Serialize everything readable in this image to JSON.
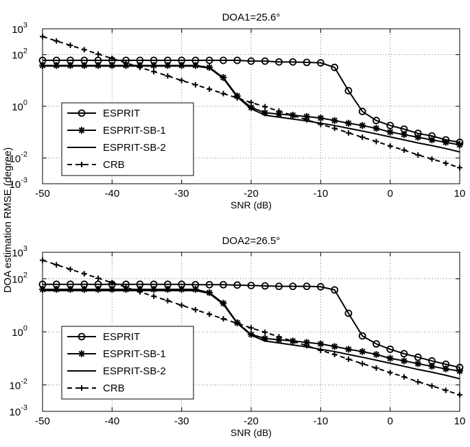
{
  "chart_data": [
    {
      "type": "line",
      "title": "DOA1=25.6°",
      "xlabel": "SNR (dB)",
      "ylabel": "DOA estimation RMSE (degree)",
      "x": [
        -50,
        -48,
        -46,
        -44,
        -42,
        -40,
        -38,
        -36,
        -34,
        -32,
        -30,
        -28,
        -26,
        -24,
        -22,
        -20,
        -18,
        -16,
        -14,
        -12,
        -10,
        -8,
        -6,
        -4,
        -2,
        0,
        2,
        4,
        6,
        8,
        10
      ],
      "xlim": [
        -50,
        10
      ],
      "xticks": [
        -50,
        -40,
        -30,
        -20,
        -10,
        0,
        10
      ],
      "ylim": [
        0.001,
        1000
      ],
      "log_scale": true,
      "grid": true,
      "legend": "lower left",
      "yticks": [
        {
          "value": 1000,
          "label": "10",
          "exponent": "3"
        },
        {
          "value": 100,
          "label": "10",
          "exponent": "2"
        },
        {
          "value": 1,
          "label": "10",
          "exponent": "0"
        },
        {
          "value": 0.01,
          "label": "10",
          "exponent": "-2"
        },
        {
          "value": 0.001,
          "label": "10",
          "exponent": "-3"
        }
      ],
      "series": [
        {
          "name": "ESPRIT",
          "color": "#000000",
          "marker": "circle",
          "dashed": false,
          "values": [
            60,
            60,
            60,
            60,
            60,
            60,
            60,
            60,
            60,
            60,
            60,
            60,
            60,
            60,
            60,
            56,
            56,
            52,
            52,
            50,
            48,
            32,
            4,
            0.63,
            0.28,
            0.18,
            0.13,
            0.089,
            0.071,
            0.05,
            0.04
          ]
        },
        {
          "name": "ESPRIT-SB-1",
          "color": "#000000",
          "marker": "asterisk",
          "dashed": false,
          "values": [
            38,
            38,
            38,
            38,
            38,
            38,
            38,
            38,
            38,
            38,
            38,
            38,
            32,
            13,
            2.5,
            0.9,
            0.56,
            0.5,
            0.45,
            0.4,
            0.35,
            0.28,
            0.22,
            0.18,
            0.14,
            0.1,
            0.08,
            0.063,
            0.05,
            0.04,
            0.032
          ]
        },
        {
          "name": "ESPRIT-SB-2",
          "color": "#000000",
          "marker": "none",
          "dashed": false,
          "values": [
            36,
            36,
            36,
            36,
            36,
            36,
            36,
            36,
            36,
            36,
            36,
            36,
            30,
            12,
            2.3,
            0.8,
            0.45,
            0.38,
            0.32,
            0.27,
            0.22,
            0.18,
            0.14,
            0.11,
            0.085,
            0.065,
            0.05,
            0.038,
            0.03,
            0.023,
            0.017
          ]
        },
        {
          "name": "CRB",
          "color": "#000000",
          "marker": "plus",
          "dashed": true,
          "values": [
            500,
            338,
            229,
            155,
            105,
            71,
            48,
            32,
            22,
            15,
            10,
            6.8,
            4.6,
            3.1,
            2.1,
            1.4,
            0.96,
            0.65,
            0.44,
            0.3,
            0.2,
            0.14,
            0.093,
            0.063,
            0.043,
            0.029,
            0.02,
            0.013,
            0.0091,
            0.0062,
            0.0042
          ]
        }
      ]
    },
    {
      "type": "line",
      "title": "DOA2=26.5°",
      "xlabel": "SNR (dB)",
      "x": [
        -50,
        -48,
        -46,
        -44,
        -42,
        -40,
        -38,
        -36,
        -34,
        -32,
        -30,
        -28,
        -26,
        -24,
        -22,
        -20,
        -18,
        -16,
        -14,
        -12,
        -10,
        -8,
        -6,
        -4,
        -2,
        0,
        2,
        4,
        6,
        8,
        10
      ],
      "xlim": [
        -50,
        10
      ],
      "xticks": [
        -50,
        -40,
        -30,
        -20,
        -10,
        0,
        10
      ],
      "ylim": [
        0.001,
        1000
      ],
      "log_scale": true,
      "grid": true,
      "legend": "lower left",
      "yticks": [
        {
          "value": 1000,
          "label": "10",
          "exponent": "3"
        },
        {
          "value": 100,
          "label": "10",
          "exponent": "2"
        },
        {
          "value": 1,
          "label": "10",
          "exponent": "0"
        },
        {
          "value": 0.01,
          "label": "10",
          "exponent": "-2"
        },
        {
          "value": 0.001,
          "label": "10",
          "exponent": "-3"
        }
      ],
      "series": [
        {
          "name": "ESPRIT",
          "color": "#000000",
          "marker": "circle",
          "dashed": false,
          "values": [
            62,
            62,
            62,
            62,
            62,
            62,
            62,
            62,
            62,
            62,
            62,
            60,
            60,
            60,
            58,
            56,
            54,
            52,
            52,
            52,
            50,
            38,
            5,
            0.7,
            0.35,
            0.22,
            0.15,
            0.11,
            0.08,
            0.06,
            0.045
          ]
        },
        {
          "name": "ESPRIT-SB-1",
          "color": "#000000",
          "marker": "asterisk",
          "dashed": false,
          "values": [
            40,
            40,
            40,
            40,
            40,
            40,
            40,
            40,
            40,
            40,
            40,
            40,
            30,
            12,
            2.2,
            0.8,
            0.56,
            0.5,
            0.45,
            0.4,
            0.35,
            0.28,
            0.22,
            0.18,
            0.14,
            0.1,
            0.08,
            0.063,
            0.05,
            0.04,
            0.033
          ]
        },
        {
          "name": "ESPRIT-SB-2",
          "color": "#000000",
          "marker": "none",
          "dashed": false,
          "values": [
            36,
            36,
            36,
            36,
            36,
            36,
            36,
            36,
            36,
            36,
            36,
            36,
            28,
            11,
            2.1,
            0.75,
            0.45,
            0.38,
            0.32,
            0.27,
            0.22,
            0.18,
            0.14,
            0.11,
            0.085,
            0.065,
            0.05,
            0.038,
            0.03,
            0.023,
            0.017
          ]
        },
        {
          "name": "CRB",
          "color": "#000000",
          "marker": "plus",
          "dashed": true,
          "values": [
            500,
            338,
            229,
            155,
            105,
            71,
            48,
            32,
            22,
            15,
            10,
            6.8,
            4.6,
            3.1,
            2.1,
            1.4,
            0.96,
            0.65,
            0.44,
            0.3,
            0.2,
            0.14,
            0.093,
            0.063,
            0.043,
            0.029,
            0.02,
            0.013,
            0.0091,
            0.0062,
            0.0042
          ]
        }
      ]
    }
  ]
}
